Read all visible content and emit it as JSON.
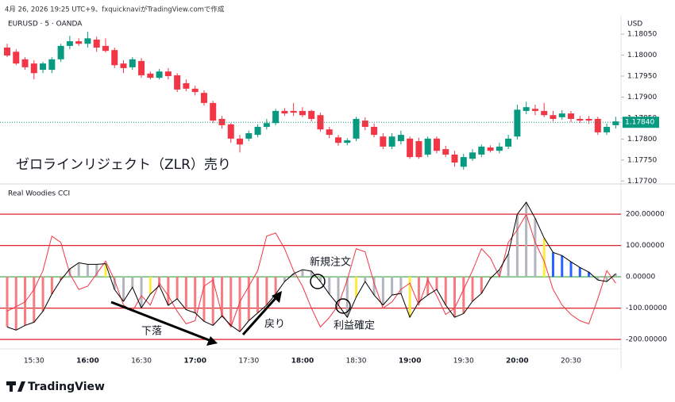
{
  "header": "4月 26, 2026 19:25 UTC+9、fxquicknaviがTradingView.comで作成",
  "footer": "TradingView",
  "chart_data": [
    {
      "type": "candlestick",
      "title": "EURUSD · 5 · OANDA",
      "y_label": "USD",
      "annotation": "ゼロラインリジェクト（ZLR）売り",
      "categories": [
        null,
        null,
        null,
        "15:30",
        null,
        null,
        null,
        null,
        null,
        "16:00",
        null,
        null,
        null,
        null,
        null,
        "16:30",
        null,
        null,
        null,
        null,
        null,
        "17:00",
        null,
        null,
        null,
        null,
        null,
        "17:30",
        null,
        null,
        null,
        null,
        null,
        "18:00",
        null,
        null,
        null,
        null,
        null,
        "18:30",
        null,
        null,
        null,
        null,
        null,
        "19:00",
        null,
        null,
        null,
        null,
        null,
        "19:30",
        null,
        null,
        null,
        null,
        null,
        "20:00",
        null,
        null,
        null,
        null,
        null,
        "20:30",
        null,
        null,
        null,
        null,
        null
      ],
      "open": [
        1.18018,
        1.18008,
        1.1799,
        1.1798,
        1.17965,
        1.17965,
        1.1799,
        1.18022,
        1.18033,
        1.18027,
        1.18037,
        1.18022,
        1.18012,
        1.1798,
        1.17971,
        1.17986,
        1.17956,
        1.17946,
        1.17961,
        1.17952,
        1.17933,
        1.1792,
        1.1791,
        1.17886,
        1.17848,
        1.17835,
        1.17801,
        1.17801,
        1.1781,
        1.17829,
        1.17838,
        1.17867,
        1.17867,
        1.17867,
        1.17867,
        1.17857,
        1.17823,
        1.17804,
        1.17791,
        1.17801,
        1.17844,
        1.17829,
        1.17806,
        1.17782,
        1.17795,
        1.17801,
        1.17795,
        1.17763,
        1.17801,
        1.17776,
        1.17763,
        1.17734,
        1.17753,
        1.17763,
        1.1778,
        1.17772,
        1.17782,
        1.17806,
        1.17867,
        1.17872,
        1.17867,
        1.17857,
        1.17852,
        1.17861,
        1.17848,
        1.17848,
        1.17848,
        1.17816,
        1.17833
      ],
      "high": [
        1.18027,
        1.18014,
        1.17995,
        1.17988,
        1.17984,
        1.17995,
        1.18027,
        1.18046,
        1.1804,
        1.18056,
        1.18044,
        1.1804,
        1.18018,
        1.17988,
        1.17995,
        1.17993,
        1.17961,
        1.17967,
        1.17969,
        1.17957,
        1.17942,
        1.17927,
        1.17916,
        1.17891,
        1.17855,
        1.17838,
        1.1781,
        1.1782,
        1.17835,
        1.17848,
        1.17872,
        1.17874,
        1.17886,
        1.17876,
        1.1787,
        1.17863,
        1.17829,
        1.1781,
        1.17802,
        1.17853,
        1.17852,
        1.17837,
        1.17814,
        1.17814,
        1.1782,
        1.17806,
        1.17803,
        1.17806,
        1.17806,
        1.17784,
        1.17772,
        1.17765,
        1.17776,
        1.17787,
        1.17785,
        1.17791,
        1.1781,
        1.17882,
        1.17889,
        1.17882,
        1.17886,
        1.17867,
        1.17869,
        1.17867,
        1.17855,
        1.17855,
        1.17853,
        1.17837,
        1.17853
      ],
      "low": [
        1.17995,
        1.17976,
        1.17965,
        1.17942,
        1.17957,
        1.17957,
        1.17984,
        1.18014,
        1.18022,
        1.18018,
        1.18008,
        1.18006,
        1.17969,
        1.17957,
        1.17965,
        1.17946,
        1.17942,
        1.17942,
        1.17942,
        1.17912,
        1.17914,
        1.17904,
        1.1788,
        1.17838,
        1.17825,
        1.17791,
        1.17768,
        1.17795,
        1.17804,
        1.17823,
        1.17833,
        1.17855,
        1.17855,
        1.17852,
        1.17842,
        1.17818,
        1.17802,
        1.17784,
        1.17785,
        1.17795,
        1.17821,
        1.17804,
        1.17776,
        1.17776,
        1.17787,
        1.17753,
        1.17753,
        1.17757,
        1.17766,
        1.17757,
        1.17734,
        1.17727,
        1.17748,
        1.17757,
        1.17768,
        1.17766,
        1.17776,
        1.17799,
        1.17859,
        1.17857,
        1.17852,
        1.17842,
        1.17846,
        1.1784,
        1.17838,
        1.17836,
        1.1781,
        1.1781,
        1.17825
      ],
      "close": [
        1.17999,
        1.1798,
        1.17971,
        1.17957,
        1.1798,
        1.1799,
        1.18022,
        1.18033,
        1.18027,
        1.1804,
        1.18018,
        1.1801,
        1.17976,
        1.17969,
        1.1799,
        1.17952,
        1.17946,
        1.17961,
        1.1795,
        1.17918,
        1.1792,
        1.17912,
        1.17886,
        1.17844,
        1.17833,
        1.17801,
        1.17787,
        1.17814,
        1.17829,
        1.17838,
        1.17867,
        1.17861,
        1.17863,
        1.17857,
        1.17848,
        1.17823,
        1.1781,
        1.17791,
        1.17797,
        1.17848,
        1.17829,
        1.1781,
        1.17782,
        1.17806,
        1.1781,
        1.17757,
        1.17757,
        1.17801,
        1.17772,
        1.17763,
        1.17744,
        1.17757,
        1.17768,
        1.17782,
        1.17772,
        1.17782,
        1.17801,
        1.1787,
        1.17876,
        1.17867,
        1.17857,
        1.17848,
        1.17861,
        1.17848,
        1.17844,
        1.17844,
        1.17816,
        1.17829,
        1.17842
      ],
      "up_color": "#089981",
      "down_color": "#f23645",
      "last_price": {
        "value": 1.1784,
        "label": "1.17840"
      },
      "ylim": [
        1.17693,
        1.18103
      ],
      "yticks": [
        {
          "value": 1.1805,
          "label": "1.18050"
        },
        {
          "value": 1.18,
          "label": "1.18000"
        },
        {
          "value": 1.1795,
          "label": "1.17950"
        },
        {
          "value": 1.179,
          "label": "1.17900"
        },
        {
          "value": 1.1785,
          "label": "1.17850"
        },
        {
          "value": 1.178,
          "label": "1.17800"
        },
        {
          "value": 1.1775,
          "label": "1.17750"
        },
        {
          "value": 1.177,
          "label": "1.17700"
        }
      ]
    },
    {
      "type": "cci",
      "title": "Real Woodies CCI",
      "values": [
        -160,
        -170,
        -155,
        -145,
        -110,
        -55,
        -10,
        25,
        45,
        40,
        40,
        42,
        -40,
        -78,
        -33,
        -99,
        -55,
        -28,
        -91,
        -70,
        -105,
        -115,
        -142,
        -155,
        -125,
        -155,
        -175,
        -140,
        -115,
        -90,
        -55,
        -15,
        10,
        23,
        18,
        -15,
        -55,
        -90,
        -129,
        -65,
        -15,
        -58,
        -90,
        -58,
        -53,
        -129,
        -80,
        -58,
        -40,
        -90,
        -129,
        -117,
        -78,
        -53,
        -5,
        23,
        73,
        200,
        238,
        187,
        124,
        78,
        68,
        48,
        30,
        15,
        -10,
        -15,
        10
      ],
      "bar_colors": [
        "#f77c80",
        "#f77c80",
        "#f77c80",
        "#f77c80",
        "#f77c80",
        "#f77c80",
        "#f77c80",
        "#b2b5be",
        "#b2b5be",
        "#b2b5be",
        "#b2b5be",
        "#ffeb3b",
        "#b2b5be",
        "#b2b5be",
        "#b2b5be",
        "#b2b5be",
        "#ffeb3b",
        "#f77c80",
        "#f77c80",
        "#f77c80",
        "#f77c80",
        "#f77c80",
        "#f77c80",
        "#f77c80",
        "#f77c80",
        "#f77c80",
        "#f77c80",
        "#f77c80",
        "#f77c80",
        "#f77c80",
        "#f77c80",
        "#b2b5be",
        "#b2b5be",
        "#b2b5be",
        "#b2b5be",
        "#b2b5be",
        "#b2b5be",
        "#b2b5be",
        "#b2b5be",
        "#ffeb3b",
        "#b2b5be",
        "#b2b5be",
        "#b2b5be",
        "#b2b5be",
        "#b2b5be",
        "#ffeb3b",
        "#f77c80",
        "#f77c80",
        "#f77c80",
        "#f77c80",
        "#f77c80",
        "#f77c80",
        "#f77c80",
        "#f77c80",
        "#f77c80",
        "#b2b5be",
        "#b2b5be",
        "#b2b5be",
        "#b2b5be",
        "#b2b5be",
        "#ffeb3b",
        "#2962ff",
        "#2962ff",
        "#2962ff",
        "#2962ff",
        "#2962ff",
        "#b2b5be",
        "#b2b5be",
        "#b2b5be"
      ],
      "line_color": "#000000",
      "turbo_values": [
        -110,
        -95,
        -80,
        -40,
        20,
        130,
        110,
        10,
        -40,
        -30,
        10,
        50,
        -10,
        -90,
        -110,
        -60,
        -90,
        -20,
        -60,
        -110,
        -150,
        -140,
        -30,
        -10,
        -120,
        -160,
        -80,
        -30,
        20,
        130,
        140,
        90,
        20,
        -30,
        -100,
        -160,
        -130,
        -90,
        -10,
        90,
        80,
        -20,
        -100,
        -80,
        -40,
        -20,
        -90,
        -10,
        -60,
        -120,
        -100,
        -40,
        20,
        90,
        60,
        0,
        110,
        150,
        200,
        110,
        50,
        -40,
        -90,
        -120,
        -140,
        -150,
        -70,
        20,
        -20
      ],
      "turbo_color": "#f23645",
      "level_color": "#e0202b",
      "zero_color": "#4caf50",
      "annotations": {
        "entry": "新規注文",
        "exit": "利益確定",
        "fall": "下落",
        "pullback": "戻り"
      },
      "ylim": [
        -230,
        296.6
      ],
      "yticks": [
        {
          "value": 200,
          "label": "200.00000"
        },
        {
          "value": 100,
          "label": "100.00000"
        },
        {
          "value": 0,
          "label": "0.00000"
        },
        {
          "value": -100,
          "label": "-100.00000"
        },
        {
          "value": -200,
          "label": "-200.00000"
        }
      ]
    }
  ]
}
